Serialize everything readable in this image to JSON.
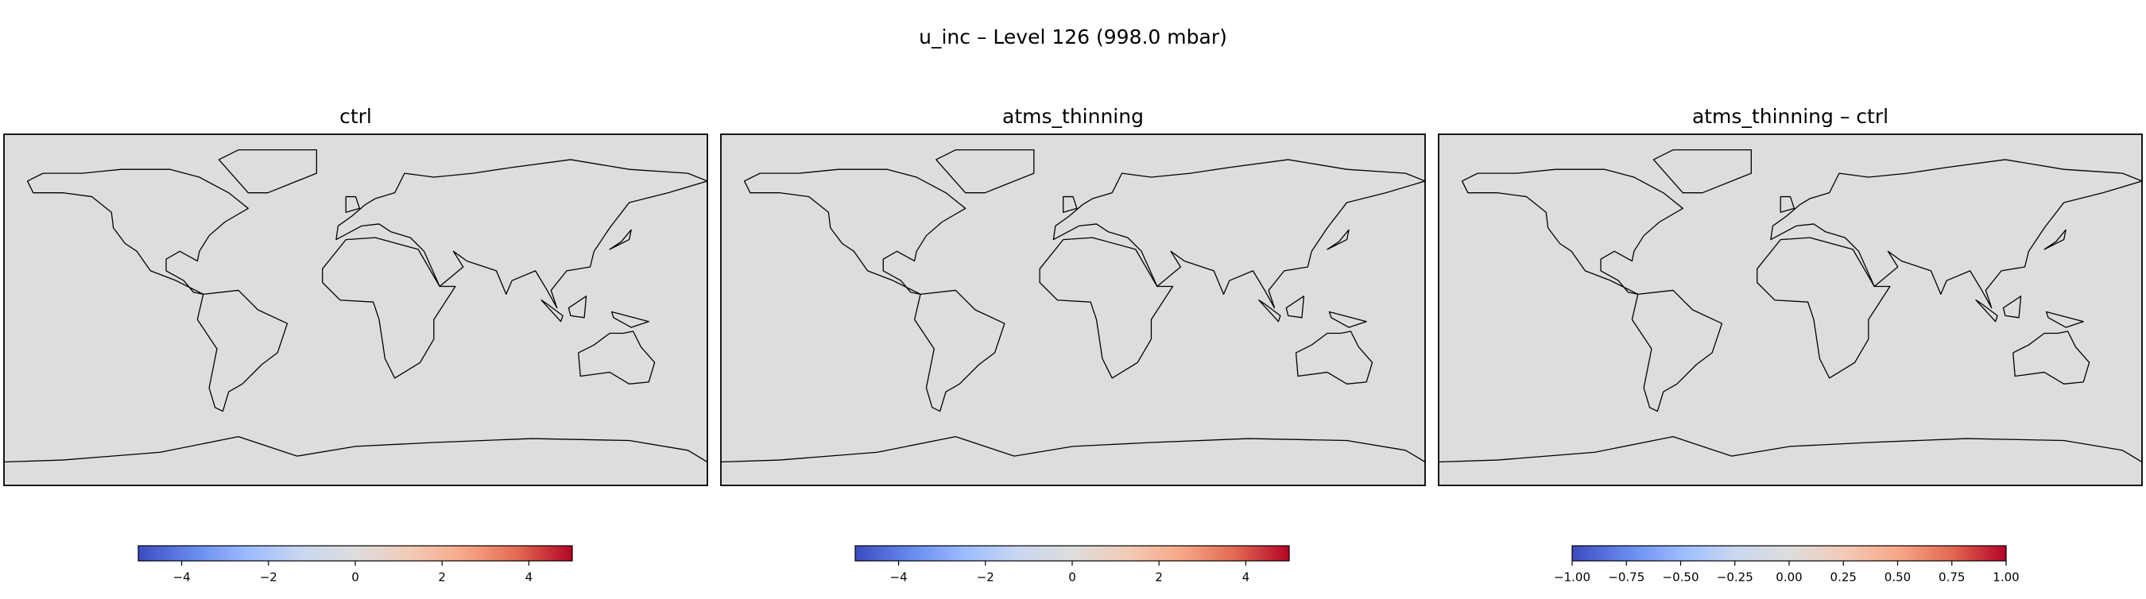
{
  "title": "u_inc – Level 126 (998.0 mbar)",
  "chart_data": [
    {
      "type": "heatmap",
      "title": "ctrl",
      "colormap": "coolwarm",
      "clim": [
        -5,
        5
      ],
      "cticks": [
        {
          "value": -4,
          "label": "−4"
        },
        {
          "value": -2,
          "label": "−2"
        },
        0,
        2,
        4
      ]
    },
    {
      "type": "heatmap",
      "title": "atms_thinning",
      "colormap": "coolwarm",
      "clim": [
        -5,
        5
      ],
      "cticks": [
        {
          "value": -4,
          "label": "−4"
        },
        {
          "value": -2,
          "label": "−2"
        },
        0,
        2,
        4
      ]
    },
    {
      "type": "heatmap",
      "title": "atms_thinning – ctrl",
      "colormap": "coolwarm",
      "clim": [
        -1,
        1
      ],
      "cticks": [
        {
          "value": -1,
          "label": "−1.00"
        },
        {
          "value": -0.75,
          "label": "−0.75"
        },
        {
          "value": -0.5,
          "label": "−0.50"
        },
        {
          "value": -0.25,
          "label": "−0.25"
        },
        {
          "value": 0,
          "label": "0.00"
        },
        0.25,
        {
          "value": 0.5,
          "label": "0.50"
        },
        0.75,
        {
          "value": 1,
          "label": "1.00"
        }
      ]
    }
  ]
}
